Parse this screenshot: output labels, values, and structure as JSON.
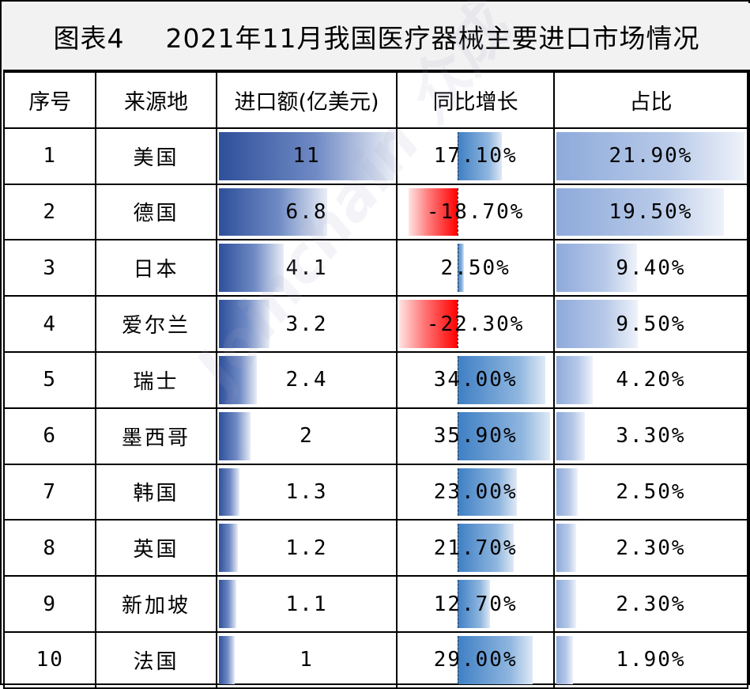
{
  "title": {
    "label": "图表4",
    "text": "2021年11月我国医疗器械主要进口市场情况"
  },
  "headers": {
    "seq": "序号",
    "source": "来源地",
    "amount": "进口额(亿美元)",
    "yoy": "同比增长",
    "share": "占比"
  },
  "rows": [
    {
      "seq": "1",
      "source": "美国",
      "amount": "11",
      "yoy": "17.10%",
      "share": "21.90%"
    },
    {
      "seq": "2",
      "source": "德国",
      "amount": "6.8",
      "yoy": "-18.70%",
      "share": "19.50%"
    },
    {
      "seq": "3",
      "source": "日本",
      "amount": "4.1",
      "yoy": "2.50%",
      "share": "9.40%"
    },
    {
      "seq": "4",
      "source": "爱尔兰",
      "amount": "3.2",
      "yoy": "-22.30%",
      "share": "9.50%"
    },
    {
      "seq": "5",
      "source": "瑞士",
      "amount": "2.4",
      "yoy": "34.00%",
      "share": "4.20%"
    },
    {
      "seq": "6",
      "source": "墨西哥",
      "amount": "2",
      "yoy": "35.90%",
      "share": "3.30%"
    },
    {
      "seq": "7",
      "source": "韩国",
      "amount": "1.3",
      "yoy": "23.00%",
      "share": "2.50%"
    },
    {
      "seq": "8",
      "source": "英国",
      "amount": "1.2",
      "yoy": "21.70%",
      "share": "2.30%"
    },
    {
      "seq": "9",
      "source": "新加坡",
      "amount": "1.1",
      "yoy": "12.70%",
      "share": "2.30%"
    },
    {
      "seq": "10",
      "source": "法国",
      "amount": "1",
      "yoy": "29.00%",
      "share": "1.90%"
    }
  ],
  "watermark": "Joinchain 众成",
  "chart_data": {
    "type": "table",
    "title": "2021年11月我国医疗器械主要进口市场情况",
    "columns": [
      "序号",
      "来源地",
      "进口额(亿美元)",
      "同比增长",
      "占比"
    ],
    "categories": [
      "美国",
      "德国",
      "日本",
      "爱尔兰",
      "瑞士",
      "墨西哥",
      "韩国",
      "英国",
      "新加坡",
      "法国"
    ],
    "series": [
      {
        "name": "进口额(亿美元)",
        "values": [
          11,
          6.8,
          4.1,
          3.2,
          2.4,
          2,
          1.3,
          1.2,
          1.1,
          1
        ]
      },
      {
        "name": "同比增长",
        "values": [
          17.1,
          -18.7,
          2.5,
          -22.3,
          34.0,
          35.9,
          23.0,
          21.7,
          12.7,
          29.0
        ]
      },
      {
        "name": "占比",
        "values": [
          21.9,
          19.5,
          9.4,
          9.5,
          4.2,
          3.3,
          2.5,
          2.3,
          2.3,
          1.9
        ]
      }
    ],
    "colors": {
      "amount_bar": "#2e4f9a",
      "share_bar": "#8eaadb",
      "yoy_positive": "#3f7fc4",
      "yoy_negative": "#ff0000",
      "title_background": "#f2f2f2"
    }
  }
}
